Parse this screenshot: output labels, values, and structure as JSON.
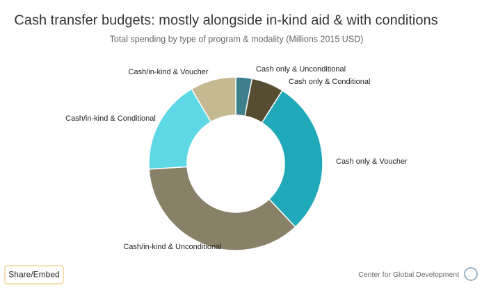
{
  "chart_data": {
    "type": "donut",
    "title": "Cash transfer budgets: mostly alongside in-kind aid & with conditions",
    "subtitle": "Total spending by type of program & modality (Millions 2015 USD)",
    "categories": [
      "Cash only & Unconditional",
      "Cash only & Conditional",
      "Cash only & Voucher",
      "Cash/in-kind & Unconditional",
      "Cash/in-kind & Conditional",
      "Cash/in-kind & Voucher"
    ],
    "values": [
      3,
      6,
      29,
      36,
      17.5,
      8.5
    ],
    "colors": [
      "#3d7f8c",
      "#554c31",
      "#20a9b9",
      "#888067",
      "#5fd8e6",
      "#c4b991"
    ],
    "button": "Share/Embed",
    "credit": "Center for Global Development"
  }
}
